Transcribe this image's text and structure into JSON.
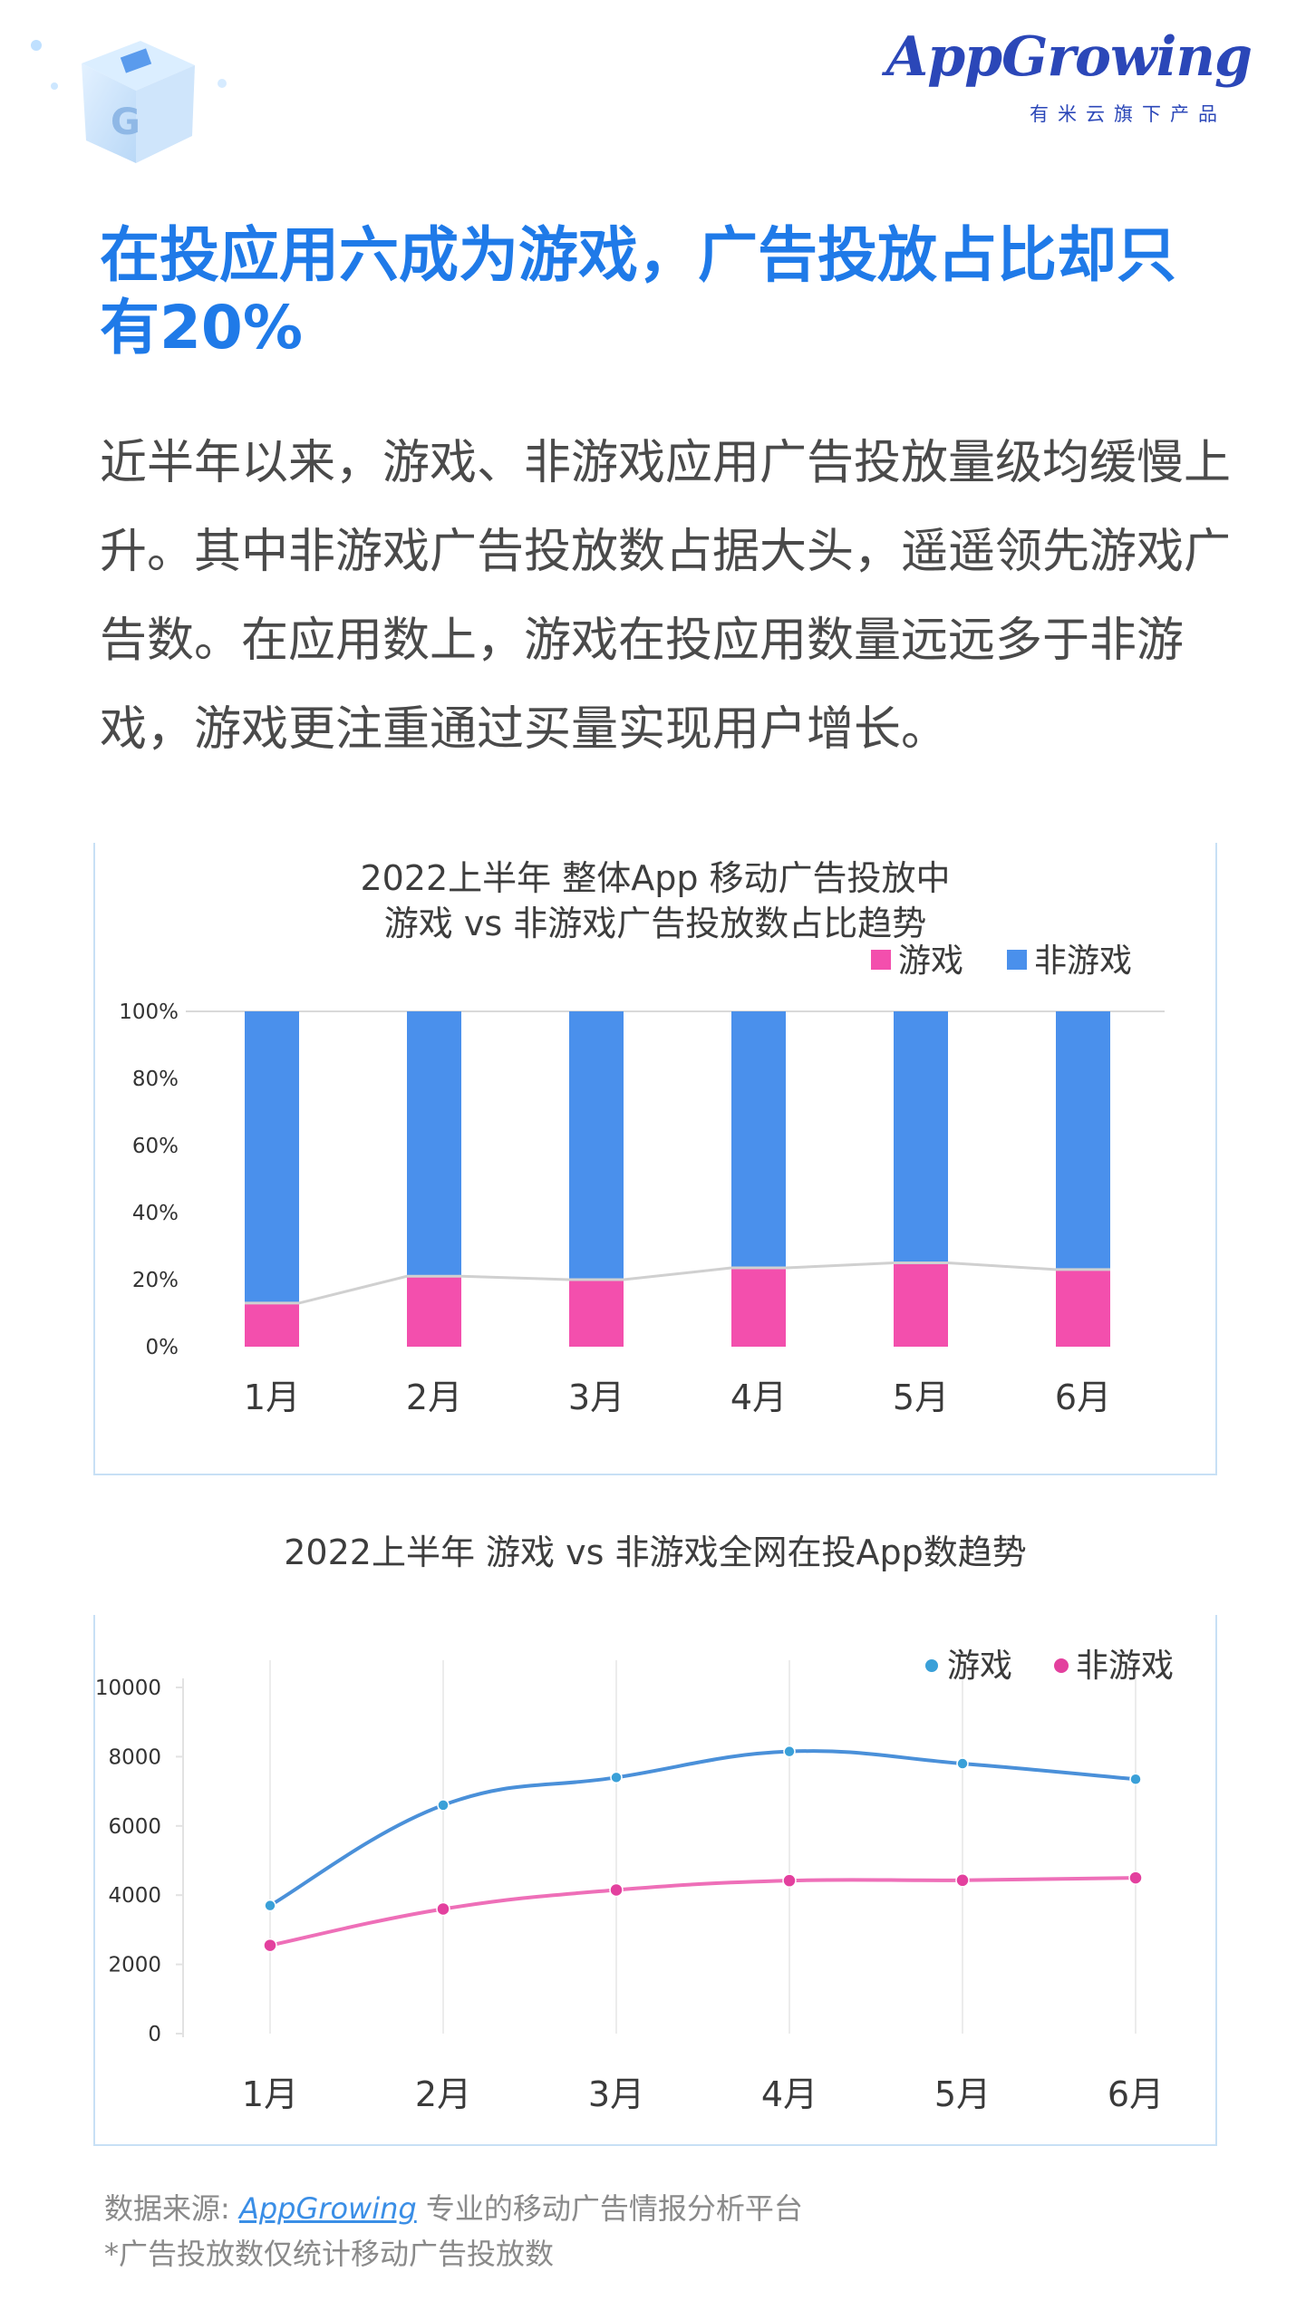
{
  "brand": {
    "logo_text": "AppGrowing",
    "logo_subtitle": "有米云旗下产品"
  },
  "headline": "在投应用六成为游戏，广告投放占比却只有20%",
  "intro": "近半年以来，游戏、非游戏应用广告投放量级均缓慢上升。其中非游戏广告投放数占据大头，遥遥领先游戏广告数。在应用数上，游戏在投应用数量远远多于非游戏，游戏更注重通过买量实现用户增长。",
  "colors": {
    "headline": "#1f7ae8",
    "game_bar": "#f34fad",
    "nongame_bar": "#4a90ec",
    "line_blue": "#4a90d9",
    "line_pink": "#ee6fb8",
    "point_blue": "#3aa0d8",
    "point_pink": "#e3409e"
  },
  "chart_data": [
    {
      "type": "bar",
      "stacked": true,
      "percent": true,
      "title_line1": "2022上半年 整体App 移动广告投放中",
      "title_line2": "游戏 vs 非游戏广告投放数占比趋势",
      "categories": [
        "1月",
        "2月",
        "3月",
        "4月",
        "5月",
        "6月"
      ],
      "series": [
        {
          "name": "游戏",
          "values": [
            13,
            21,
            20,
            23.5,
            25,
            23
          ]
        },
        {
          "name": "非游戏",
          "values": [
            87,
            79,
            80,
            76.5,
            75,
            77
          ]
        }
      ],
      "yticks": [
        "0%",
        "20%",
        "40%",
        "60%",
        "80%",
        "100%"
      ],
      "ylim": [
        0,
        100
      ],
      "legend": "top-right",
      "trend_line_on": "游戏"
    },
    {
      "type": "line",
      "title": "2022上半年 游戏 vs 非游戏全网在投App数趋势",
      "categories": [
        "1月",
        "2月",
        "3月",
        "4月",
        "5月",
        "6月"
      ],
      "series": [
        {
          "name": "游戏",
          "values": [
            3700,
            6600,
            7400,
            8150,
            7800,
            7350
          ]
        },
        {
          "name": "非游戏",
          "values": [
            2550,
            3600,
            4150,
            4420,
            4430,
            4500
          ]
        }
      ],
      "yticks": [
        "0",
        "2000",
        "4000",
        "6000",
        "8000",
        "10000"
      ],
      "ylim": [
        0,
        10000
      ],
      "legend": "top-right",
      "grid": "vertical"
    }
  ],
  "footer": {
    "source_label": "数据来源: ",
    "source_link": "AppGrowing",
    "source_desc": " 专业的移动广告情报分析平台",
    "note": "*广告投放数仅统计移动广告投放数"
  }
}
